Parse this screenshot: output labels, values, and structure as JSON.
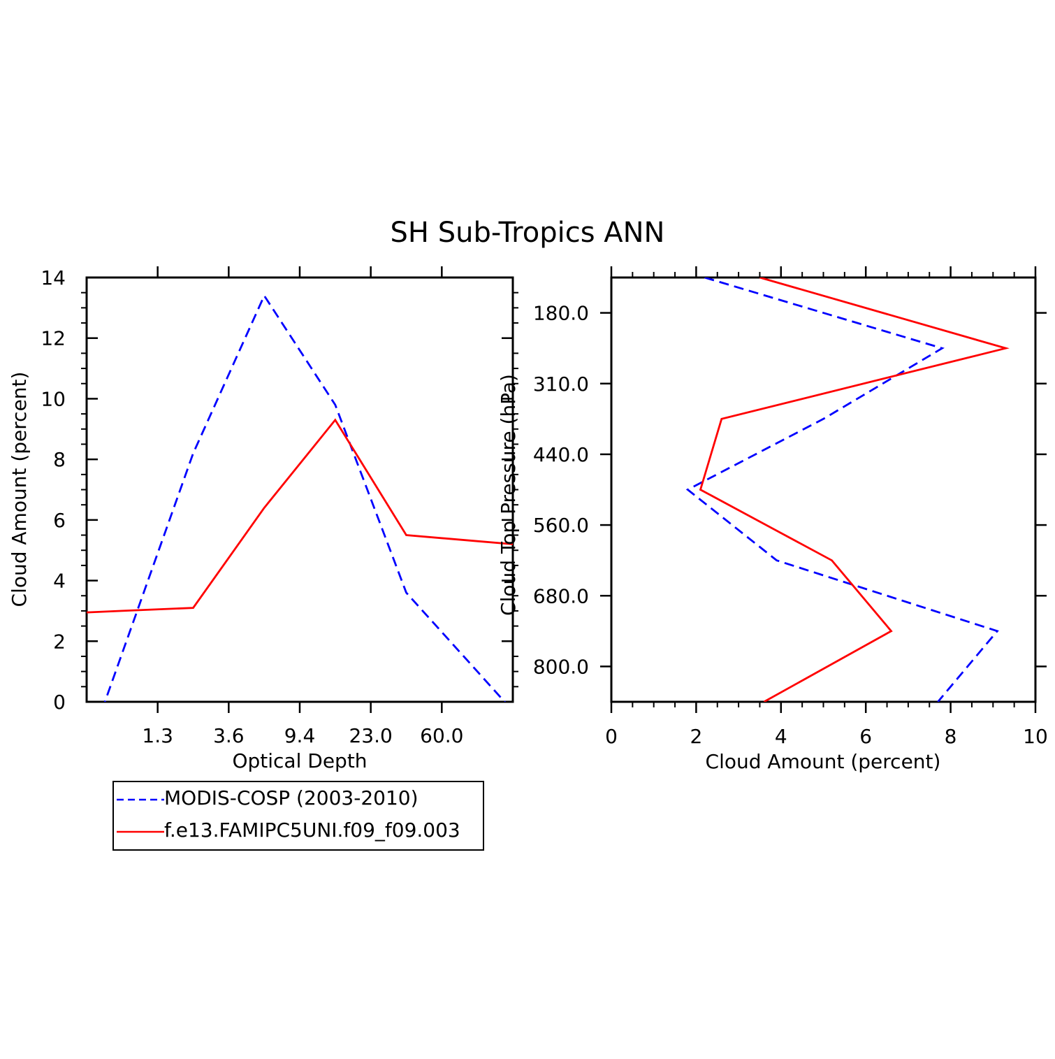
{
  "title": "SH Sub-Tropics ANN",
  "colors": {
    "obs": "#0000ff",
    "model": "#ff0000",
    "axis": "#000000"
  },
  "legend": {
    "items": [
      {
        "label": "MODIS-COSP (2003-2010)",
        "color": "#0000ff",
        "style": "dashed"
      },
      {
        "label": "f.e13.FAMIPC5UNI.f09_f09.003",
        "color": "#ff0000",
        "style": "solid"
      }
    ]
  },
  "chart_data": [
    {
      "type": "line",
      "title": "",
      "xlabel": "Optical Depth",
      "ylabel": "Cloud Amount (percent)",
      "x_tick_labels": [
        "1.3",
        "3.6",
        "9.4",
        "23.0",
        "60.0"
      ],
      "x_index_range": [
        0,
        6
      ],
      "x_positions": [
        0.5,
        1.5,
        2.5,
        3.5,
        4.5,
        5.5
      ],
      "ylim": [
        0,
        14
      ],
      "y_ticks": [
        0,
        2,
        4,
        6,
        8,
        10,
        12,
        14
      ],
      "series": [
        {
          "name": "MODIS-COSP (2003-2010)",
          "values": [
            1.6,
            8.2,
            13.4,
            9.8,
            3.6,
            1.0
          ]
        },
        {
          "name": "f.e13.FAMIPC5UNI.f09_f09.003",
          "values": [
            3.0,
            3.1,
            6.4,
            9.3,
            5.5,
            5.3
          ]
        }
      ]
    },
    {
      "type": "line",
      "title": "",
      "xlabel": "Cloud Amount (percent)",
      "ylabel": "Cloud Top Pressure (hPa)",
      "xlim": [
        0,
        10
      ],
      "x_ticks": [
        0,
        2,
        4,
        6,
        8,
        10
      ],
      "y_tick_labels": [
        "180.0",
        "310.0",
        "440.0",
        "560.0",
        "680.0",
        "800.0"
      ],
      "y_index_range": [
        0,
        6
      ],
      "y_positions": [
        0,
        1,
        2,
        3,
        4,
        5,
        6
      ],
      "series": [
        {
          "name": "MODIS-COSP (2003-2010)",
          "values": [
            2.2,
            7.8,
            5.0,
            1.8,
            3.9,
            9.1,
            7.7
          ]
        },
        {
          "name": "f.e13.FAMIPC5UNI.f09_f09.003",
          "values": [
            3.5,
            9.3,
            2.6,
            2.1,
            5.2,
            6.6,
            3.6
          ]
        }
      ]
    }
  ]
}
